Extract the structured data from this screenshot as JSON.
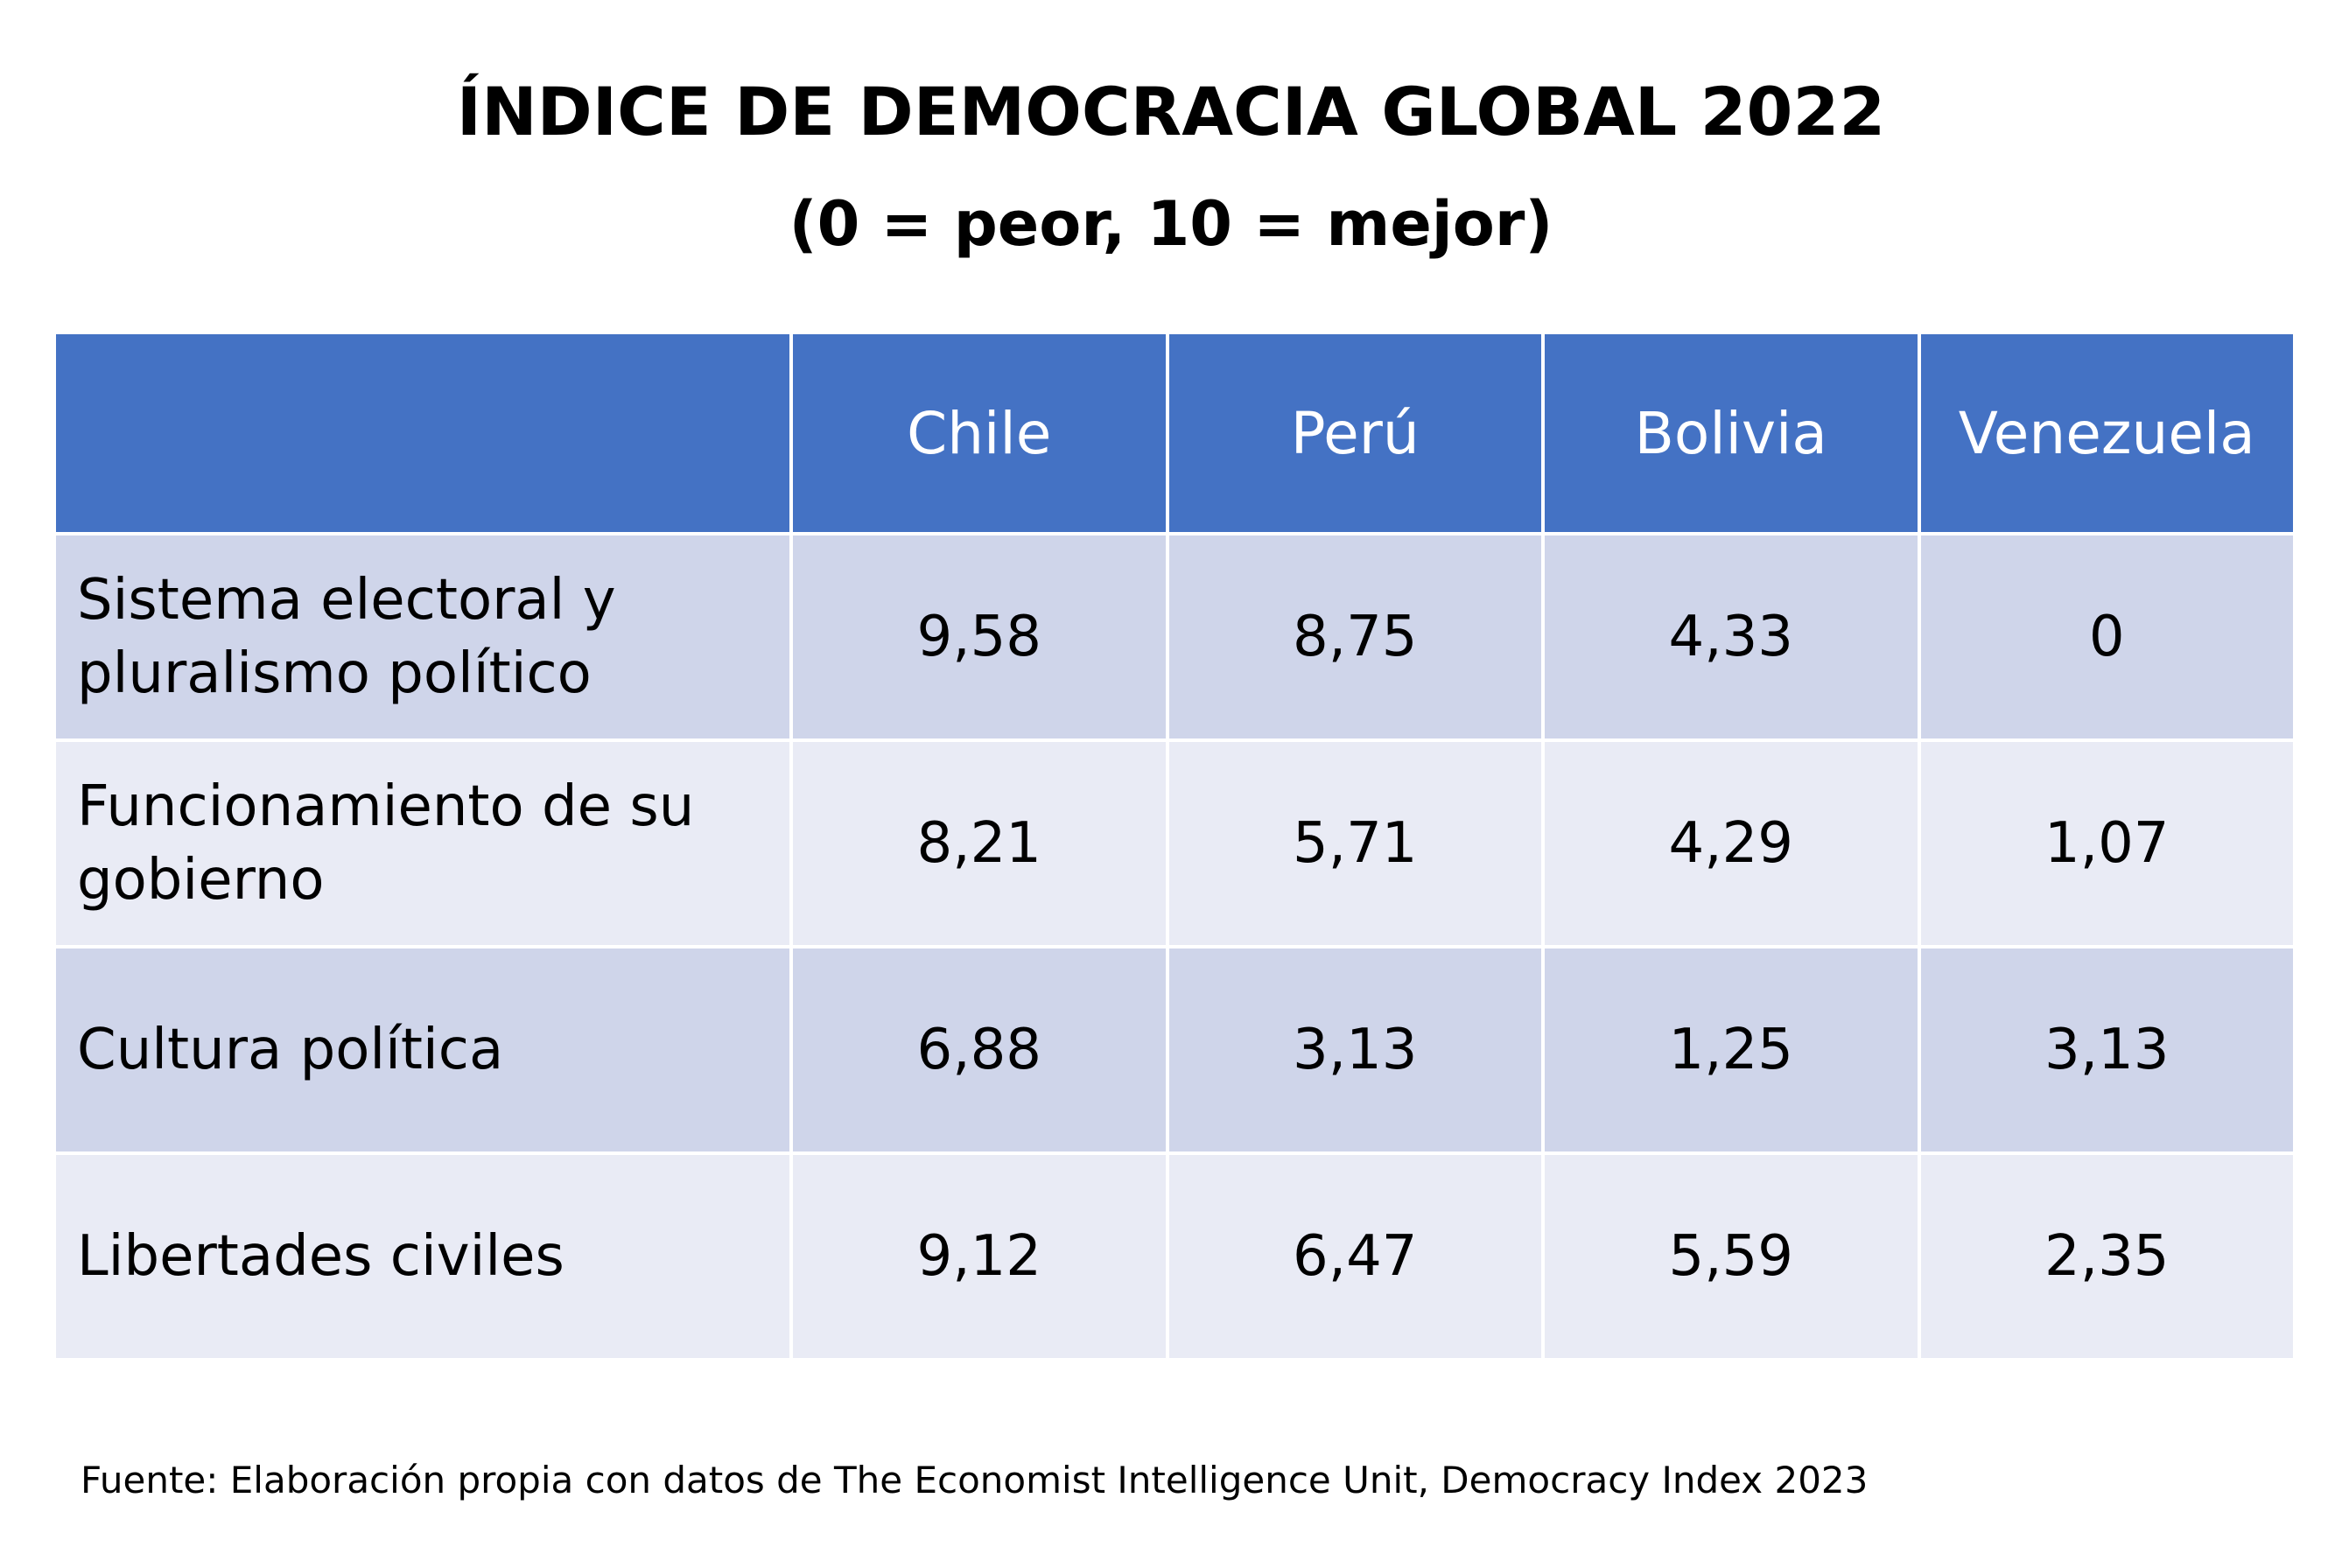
{
  "title": "ÍNDICE DE DEMOCRACIA GLOBAL 2022",
  "subtitle": "(0 = peor, 10 = mejor)",
  "colors": {
    "header_bg": "#4472C4",
    "row_dark": "#CFD5EA",
    "row_light": "#E9EBF5",
    "header_text": "#FFFFFF"
  },
  "chart_data": {
    "type": "table",
    "title": "ÍNDICE DE DEMOCRACIA GLOBAL 2022",
    "subtitle": "(0 = peor, 10 = mejor)",
    "columns": [
      "",
      "Chile",
      "Perú",
      "Bolivia",
      "Venezuela"
    ],
    "rows": [
      {
        "label": "Sistema electoral y pluralismo político",
        "values": [
          "9,58",
          "8,75",
          "4,33",
          "0"
        ]
      },
      {
        "label": "Funcionamiento de su gobierno",
        "values": [
          "8,21",
          "5,71",
          "4,29",
          "1,07"
        ]
      },
      {
        "label": "Cultura política",
        "values": [
          "6,88",
          "3,13",
          "1,25",
          "3,13"
        ]
      },
      {
        "label": "Libertades civiles",
        "values": [
          "9,12",
          "6,47",
          "5,59",
          "2,35"
        ]
      }
    ]
  },
  "source": "Fuente: Elaboración propia con datos de The Economist Intelligence Unit, Democracy Index 2023"
}
